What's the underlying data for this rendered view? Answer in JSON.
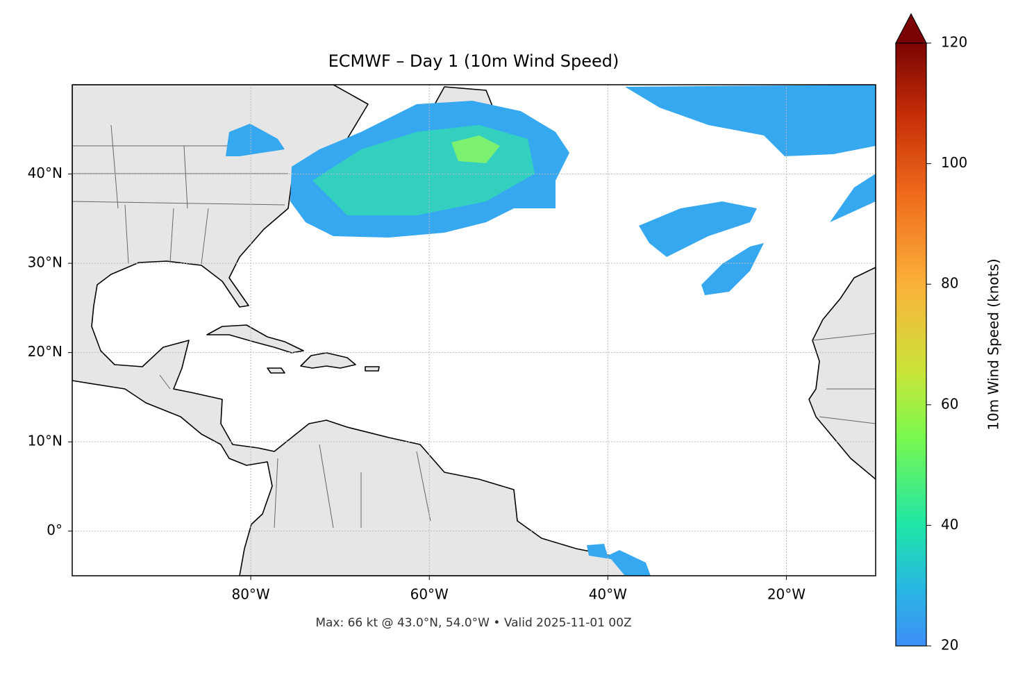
{
  "title": "ECMWF – Day 1 (10m Wind Speed)",
  "footer": "Max: 66 kt @ 43.0°N, 54.0°W • Valid 2025-11-01 00Z",
  "extent": {
    "lon": [
      -100,
      -10
    ],
    "lat": [
      -5,
      50
    ]
  },
  "lon_ticks": [
    {
      "value": -80,
      "label": "80°W"
    },
    {
      "value": -60,
      "label": "60°W"
    },
    {
      "value": -40,
      "label": "40°W"
    },
    {
      "value": -20,
      "label": "20°W"
    }
  ],
  "lat_ticks": [
    {
      "value": 0,
      "label": "0°"
    },
    {
      "value": 10,
      "label": "10°N"
    },
    {
      "value": 20,
      "label": "20°N"
    },
    {
      "value": 30,
      "label": "30°N"
    },
    {
      "value": 40,
      "label": "40°N"
    }
  ],
  "colorbar": {
    "label": "10m Wind Speed (knots)",
    "lim": [
      20,
      120
    ],
    "ticks": [
      20,
      40,
      60,
      80,
      100,
      120
    ]
  }
}
